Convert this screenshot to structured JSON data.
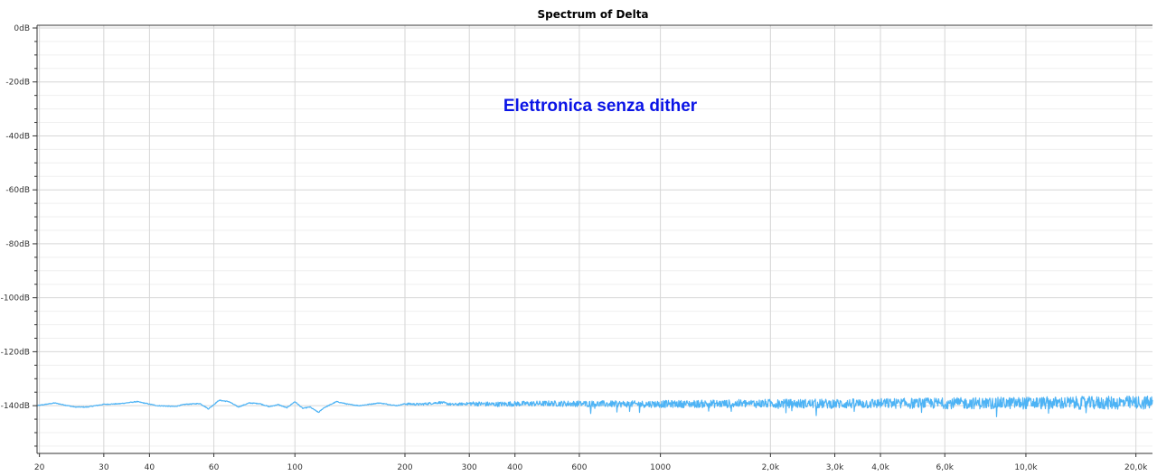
{
  "chart_data": {
    "type": "line",
    "title": "Spectrum of Delta",
    "annotation": "Elettronica senza dither",
    "xlabel": "",
    "ylabel": "",
    "x_scale": "log",
    "xlim": [
      19.7,
      22200
    ],
    "ylim": [
      -157.7,
      1
    ],
    "grid": true,
    "x_ticks": [
      {
        "value": 20,
        "label": "20"
      },
      {
        "value": 30,
        "label": "30"
      },
      {
        "value": 40,
        "label": "40"
      },
      {
        "value": 60,
        "label": "60"
      },
      {
        "value": 100,
        "label": "100"
      },
      {
        "value": 200,
        "label": "200"
      },
      {
        "value": 300,
        "label": "300"
      },
      {
        "value": 400,
        "label": "400"
      },
      {
        "value": 600,
        "label": "600"
      },
      {
        "value": 1000,
        "label": "1000"
      },
      {
        "value": 2000,
        "label": "2,0k"
      },
      {
        "value": 3000,
        "label": "3,0k"
      },
      {
        "value": 4000,
        "label": "4,0k"
      },
      {
        "value": 6000,
        "label": "6,0k"
      },
      {
        "value": 10000,
        "label": "10,0k"
      },
      {
        "value": 20000,
        "label": "20,0k"
      }
    ],
    "y_ticks": [
      {
        "value": 0,
        "label": "0dB"
      },
      {
        "value": -20,
        "label": "-20dB"
      },
      {
        "value": -40,
        "label": "-40dB"
      },
      {
        "value": -60,
        "label": "-60dB"
      },
      {
        "value": -80,
        "label": "-80dB"
      },
      {
        "value": -100,
        "label": "-100dB"
      },
      {
        "value": -120,
        "label": "-120dB"
      },
      {
        "value": -140,
        "label": "-140dB"
      }
    ],
    "y_minor_step": 5,
    "series": [
      {
        "color": "#4db3f5",
        "x": [
          19.7,
          22,
          25,
          27,
          30,
          33,
          37,
          42,
          47,
          50,
          55,
          58,
          62,
          66,
          70,
          75,
          80,
          85,
          90,
          95,
          100,
          105,
          110,
          116,
          120,
          130,
          140,
          150,
          170,
          190,
          200,
          220,
          250,
          270,
          300,
          350,
          400,
          500,
          600,
          800,
          1000,
          1500,
          2000,
          3000,
          4000,
          6000,
          8000,
          10000,
          15000,
          20000,
          22200
        ],
        "y": [
          -140,
          -139,
          -140.5,
          -140.5,
          -139.5,
          -139.3,
          -138.5,
          -140,
          -140.3,
          -139.5,
          -139.2,
          -141.2,
          -138,
          -138.5,
          -140.5,
          -139,
          -139.2,
          -140.4,
          -139.6,
          -140.8,
          -138.5,
          -141,
          -140.5,
          -142.5,
          -140.8,
          -138.5,
          -139.5,
          -140,
          -139,
          -140,
          -139.3,
          -139.5,
          -138.8,
          -139.6,
          -139.2,
          -139.5,
          -139.3,
          -139.2,
          -139.3,
          -139.4,
          -139.4,
          -139.3,
          -139.2,
          -139.3,
          -139.2,
          -139.1,
          -139.1,
          -139,
          -139,
          -138.9,
          -138.9
        ]
      }
    ]
  }
}
